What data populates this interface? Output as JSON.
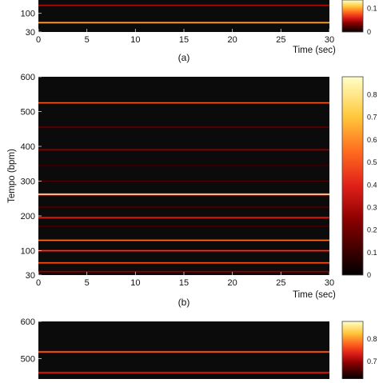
{
  "chart_data": [
    {
      "type": "heatmap",
      "panel_label": "(a)",
      "xlabel": "Time (sec)",
      "ylabel": "",
      "xlim": [
        0,
        30
      ],
      "x_ticks": [
        "0",
        "5",
        "10",
        "15",
        "20",
        "25",
        "30"
      ],
      "ylim": [
        30,
        600
      ],
      "y_ticks": [
        "100",
        "30"
      ],
      "colorbar_ticks": [
        "0.1",
        "0"
      ],
      "colormap": [
        "#000000",
        "#3a0000",
        "#8b0000",
        "#e0201a",
        "#ff6a1e",
        "#ffc83c",
        "#ffffc8"
      ],
      "visible_y_range": [
        30,
        150
      ],
      "bands": [
        {
          "tempo": 130,
          "intensity": 0.35
        },
        {
          "tempo": 65,
          "intensity": 0.7
        }
      ]
    },
    {
      "type": "heatmap",
      "panel_label": "(b)",
      "xlabel": "Time (sec)",
      "ylabel": "Tempo (bpm)",
      "xlim": [
        0,
        30
      ],
      "x_ticks": [
        "0",
        "5",
        "10",
        "15",
        "20",
        "25",
        "30"
      ],
      "ylim": [
        30,
        600
      ],
      "y_ticks": [
        "600",
        "500",
        "400",
        "300",
        "200",
        "100",
        "30"
      ],
      "colorbar_range": [
        0,
        0.88
      ],
      "colorbar_ticks": [
        "0.8",
        "0.7",
        "0.6",
        "0.5",
        "0.4",
        "0.3",
        "0.2",
        "0.1",
        "0"
      ],
      "colormap": [
        "#000000",
        "#3a0000",
        "#8b0000",
        "#e0201a",
        "#ff6a1e",
        "#ffc83c",
        "#ffffc8"
      ],
      "bands": [
        {
          "tempo": 525,
          "intensity": 0.55
        },
        {
          "tempo": 455,
          "intensity": 0.22
        },
        {
          "tempo": 390,
          "intensity": 0.3
        },
        {
          "tempo": 345,
          "intensity": 0.15
        },
        {
          "tempo": 300,
          "intensity": 0.18
        },
        {
          "tempo": 262,
          "intensity": 0.88
        },
        {
          "tempo": 225,
          "intensity": 0.2
        },
        {
          "tempo": 195,
          "intensity": 0.45
        },
        {
          "tempo": 170,
          "intensity": 0.18
        },
        {
          "tempo": 130,
          "intensity": 0.6
        },
        {
          "tempo": 100,
          "intensity": 0.5
        },
        {
          "tempo": 65,
          "intensity": 0.55
        },
        {
          "tempo": 40,
          "intensity": 0.3
        }
      ]
    },
    {
      "type": "heatmap",
      "panel_label": "",
      "xlabel": "",
      "ylabel": "",
      "xlim": [
        0,
        30
      ],
      "ylim": [
        30,
        600
      ],
      "y_ticks": [
        "600",
        "500"
      ],
      "colorbar_ticks": [
        "0.8",
        "0.7"
      ],
      "colormap": [
        "#000000",
        "#3a0000",
        "#8b0000",
        "#e0201a",
        "#ff6a1e",
        "#ffc83c",
        "#ffffc8"
      ],
      "visible_y_range": [
        445,
        600
      ],
      "bands": [
        {
          "tempo": 518,
          "intensity": 0.6
        },
        {
          "tempo": 462,
          "intensity": 0.45
        }
      ]
    }
  ]
}
